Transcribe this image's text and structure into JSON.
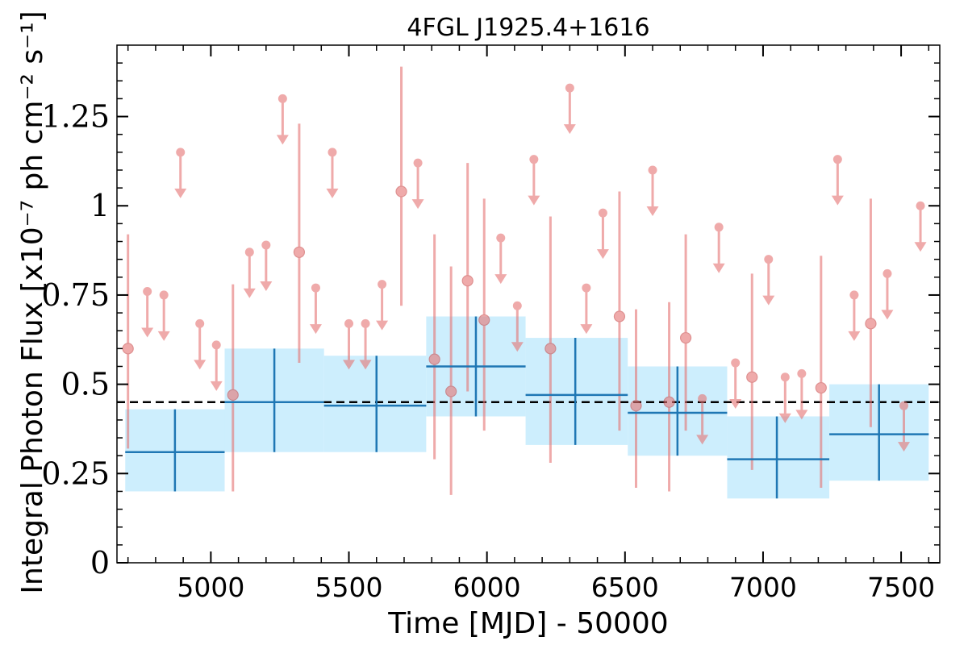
{
  "chart_data": {
    "type": "scatter",
    "title": "4FGL J1925.4+1616",
    "xlabel": "Time [MJD] - 50000",
    "ylabel": "Integral Photon Flux [x10⁻⁷ ph cm⁻² s⁻¹]",
    "xlim": [
      4660,
      7640
    ],
    "ylim": [
      0,
      1.45
    ],
    "xticks": [
      5000,
      5500,
      6000,
      6500,
      7000,
      7500
    ],
    "xtick_labels": [
      "5000",
      "5500",
      "6000",
      "6500",
      "7000",
      "7500"
    ],
    "yticks": [
      0,
      0.25,
      0.5,
      0.75,
      1,
      1.25
    ],
    "ytick_labels": [
      "0",
      "0.25",
      "0.5",
      "0.75",
      "1",
      "1.25"
    ],
    "grid": false,
    "reference_line": {
      "y": 0.45,
      "style": "dashed",
      "color": "#000000"
    },
    "colors": {
      "detections": "#e57373",
      "upper_limits": "#e57373",
      "bins": "#1f77b4",
      "bin_band": "#cdeefd"
    },
    "series": [
      {
        "kind": "detections",
        "points": [
          {
            "x": 4700,
            "y": 0.6,
            "ylo": 0.32,
            "yhi": 0.92
          },
          {
            "x": 5080,
            "y": 0.47,
            "ylo": 0.2,
            "yhi": 0.78
          },
          {
            "x": 5320,
            "y": 0.87,
            "ylo": 0.56,
            "yhi": 1.23
          },
          {
            "x": 5690,
            "y": 1.04,
            "ylo": 0.72,
            "yhi": 1.39
          },
          {
            "x": 5810,
            "y": 0.57,
            "ylo": 0.29,
            "yhi": 0.92
          },
          {
            "x": 5870,
            "y": 0.48,
            "ylo": 0.19,
            "yhi": 0.83
          },
          {
            "x": 5930,
            "y": 0.79,
            "ylo": 0.48,
            "yhi": 1.12
          },
          {
            "x": 5990,
            "y": 0.68,
            "ylo": 0.37,
            "yhi": 1.02
          },
          {
            "x": 6230,
            "y": 0.6,
            "ylo": 0.28,
            "yhi": 0.97
          },
          {
            "x": 6480,
            "y": 0.69,
            "ylo": 0.37,
            "yhi": 1.04
          },
          {
            "x": 6540,
            "y": 0.44,
            "ylo": 0.21,
            "yhi": 0.71
          },
          {
            "x": 6660,
            "y": 0.45,
            "ylo": 0.2,
            "yhi": 0.73
          },
          {
            "x": 6720,
            "y": 0.63,
            "ylo": 0.37,
            "yhi": 0.92
          },
          {
            "x": 6960,
            "y": 0.52,
            "ylo": 0.26,
            "yhi": 0.81
          },
          {
            "x": 7210,
            "y": 0.49,
            "ylo": 0.21,
            "yhi": 0.86
          },
          {
            "x": 7390,
            "y": 0.67,
            "ylo": 0.38,
            "yhi": 1.02
          }
        ]
      },
      {
        "kind": "upper_limits",
        "points": [
          {
            "x": 4770,
            "y": 0.76
          },
          {
            "x": 4830,
            "y": 0.75
          },
          {
            "x": 4890,
            "y": 1.15
          },
          {
            "x": 4960,
            "y": 0.67
          },
          {
            "x": 5020,
            "y": 0.61
          },
          {
            "x": 5140,
            "y": 0.87
          },
          {
            "x": 5200,
            "y": 0.89
          },
          {
            "x": 5260,
            "y": 1.3
          },
          {
            "x": 5380,
            "y": 0.77
          },
          {
            "x": 5440,
            "y": 1.15
          },
          {
            "x": 5500,
            "y": 0.67
          },
          {
            "x": 5560,
            "y": 0.67
          },
          {
            "x": 5620,
            "y": 0.78
          },
          {
            "x": 5750,
            "y": 1.12
          },
          {
            "x": 6050,
            "y": 0.91
          },
          {
            "x": 6110,
            "y": 0.72
          },
          {
            "x": 6170,
            "y": 1.13
          },
          {
            "x": 6300,
            "y": 1.33
          },
          {
            "x": 6360,
            "y": 0.77
          },
          {
            "x": 6420,
            "y": 0.98
          },
          {
            "x": 6600,
            "y": 1.1
          },
          {
            "x": 6780,
            "y": 0.46
          },
          {
            "x": 6840,
            "y": 0.94
          },
          {
            "x": 6900,
            "y": 0.56
          },
          {
            "x": 7020,
            "y": 0.85
          },
          {
            "x": 7080,
            "y": 0.52
          },
          {
            "x": 7140,
            "y": 0.53
          },
          {
            "x": 7270,
            "y": 1.13
          },
          {
            "x": 7330,
            "y": 0.75
          },
          {
            "x": 7450,
            "y": 0.81
          },
          {
            "x": 7510,
            "y": 0.44
          },
          {
            "x": 7570,
            "y": 1.0
          }
        ]
      },
      {
        "kind": "bins",
        "points": [
          {
            "x0": 4690,
            "x1": 5050,
            "xc": 4870,
            "y": 0.31,
            "ylo": 0.2,
            "yhi": 0.43
          },
          {
            "x0": 5050,
            "x1": 5410,
            "xc": 5230,
            "y": 0.45,
            "ylo": 0.31,
            "yhi": 0.6
          },
          {
            "x0": 5410,
            "x1": 5780,
            "xc": 5600,
            "y": 0.44,
            "ylo": 0.31,
            "yhi": 0.58
          },
          {
            "x0": 5780,
            "x1": 6140,
            "xc": 5960,
            "y": 0.55,
            "ylo": 0.41,
            "yhi": 0.69
          },
          {
            "x0": 6140,
            "x1": 6510,
            "xc": 6320,
            "y": 0.47,
            "ylo": 0.33,
            "yhi": 0.63
          },
          {
            "x0": 6510,
            "x1": 6870,
            "xc": 6690,
            "y": 0.42,
            "ylo": 0.3,
            "yhi": 0.55
          },
          {
            "x0": 6870,
            "x1": 7240,
            "xc": 7050,
            "y": 0.29,
            "ylo": 0.18,
            "yhi": 0.41
          },
          {
            "x0": 7240,
            "x1": 7600,
            "xc": 7420,
            "y": 0.36,
            "ylo": 0.23,
            "yhi": 0.5
          }
        ]
      }
    ]
  }
}
